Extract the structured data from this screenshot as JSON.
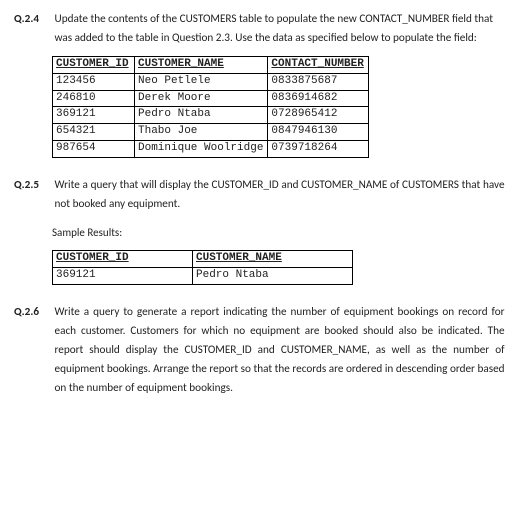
{
  "q24": {
    "number": "Q.2.4",
    "text": "Update the contents of the CUSTOMERS table to populate the new CONTACT_NUMBER field that was added to the table in Question 2.3. Use the data as specified below to populate the field:",
    "table": {
      "columns": [
        "CUSTOMER_ID",
        "CUSTOMER_NAME",
        "CONTACT_NUMBER"
      ],
      "rows": [
        [
          "123456",
          "Neo Petlele",
          "0833875687"
        ],
        [
          "246810",
          "Derek Moore",
          "0836914682"
        ],
        [
          "369121",
          "Pedro Ntaba",
          "0728965412"
        ],
        [
          "654321",
          "Thabo Joe",
          "0847946130"
        ],
        [
          "987654",
          "Dominique Woolridge",
          "0739718264"
        ]
      ]
    }
  },
  "q25": {
    "number": "Q.2.5",
    "text": "Write a query that will display the CUSTOMER_ID and CUSTOMER_NAME of CUSTOMERS that have not booked any equipment.",
    "sample_label": "Sample Results:",
    "table": {
      "columns": [
        "CUSTOMER_ID",
        "CUSTOMER_NAME"
      ],
      "rows": [
        [
          "369121",
          "Pedro Ntaba"
        ]
      ]
    }
  },
  "q26": {
    "number": "Q.2.6",
    "text": "Write a query to generate a report indicating the number of equipment bookings on record for each customer. Customers for which no equipment are booked should also be indicated. The report should display the CUSTOMER_ID and CUSTOMER_NAME, as well as the number of equipment bookings. Arrange the report so that the records are ordered in descending order based on the number of equipment bookings."
  }
}
